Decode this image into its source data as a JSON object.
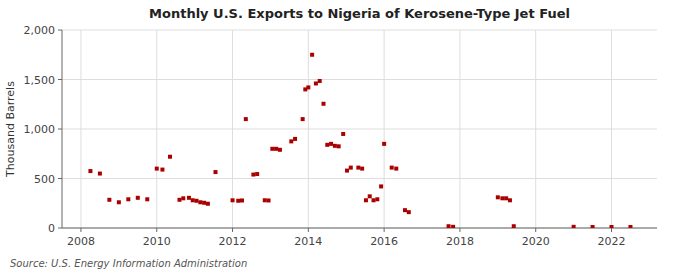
{
  "chart_data": {
    "type": "scatter",
    "title": "Monthly U.S. Exports to Nigeria of Kerosene-Type Jet Fuel",
    "y_label": "Thousand Barrels",
    "annotations": [
      "Source: U.S. Energy Information Administration"
    ],
    "color": "#aa0000",
    "marker": "square",
    "grid": true,
    "xlim": [
      2007.5,
      2023.2
    ],
    "ylim": [
      0,
      2000
    ],
    "xticks": [
      2008,
      2010,
      2012,
      2014,
      2016,
      2018,
      2020,
      2022
    ],
    "yticks": [
      0,
      500,
      {
        "value": 1000,
        "label": "1,000"
      },
      {
        "value": 1500,
        "label": "1,500"
      },
      {
        "value": 2000,
        "label": "2,000"
      }
    ],
    "x": [
      2008.25,
      2008.5,
      2008.75,
      2009.0,
      2009.25,
      2009.5,
      2009.75,
      2010.0,
      2010.15,
      2010.35,
      2010.6,
      2010.7,
      2010.85,
      2010.95,
      2011.05,
      2011.15,
      2011.25,
      2011.35,
      2011.55,
      2012.0,
      2012.15,
      2012.25,
      2012.35,
      2012.55,
      2012.65,
      2012.85,
      2012.95,
      2013.05,
      2013.15,
      2013.25,
      2013.55,
      2013.65,
      2013.85,
      2013.92,
      2014.0,
      2014.1,
      2014.2,
      2014.3,
      2014.4,
      2014.5,
      2014.6,
      2014.7,
      2014.8,
      2014.92,
      2015.02,
      2015.12,
      2015.32,
      2015.42,
      2015.52,
      2015.62,
      2015.72,
      2015.82,
      2015.92,
      2016.0,
      2016.2,
      2016.32,
      2016.55,
      2016.65,
      2017.7,
      2017.82,
      2019.0,
      2019.12,
      2019.22,
      2019.32,
      2019.42,
      2021.0,
      2021.5,
      2022.0,
      2022.5
    ],
    "values": [
      575,
      550,
      285,
      260,
      290,
      305,
      290,
      600,
      590,
      720,
      285,
      300,
      305,
      280,
      275,
      260,
      255,
      245,
      565,
      280,
      275,
      278,
      1100,
      540,
      545,
      280,
      278,
      800,
      800,
      790,
      875,
      900,
      1100,
      1400,
      1420,
      1750,
      1460,
      1485,
      1255,
      840,
      850,
      830,
      825,
      950,
      580,
      610,
      610,
      600,
      280,
      320,
      280,
      290,
      420,
      850,
      610,
      600,
      180,
      160,
      18,
      12,
      310,
      300,
      300,
      280,
      18,
      12,
      10,
      10,
      10
    ]
  }
}
